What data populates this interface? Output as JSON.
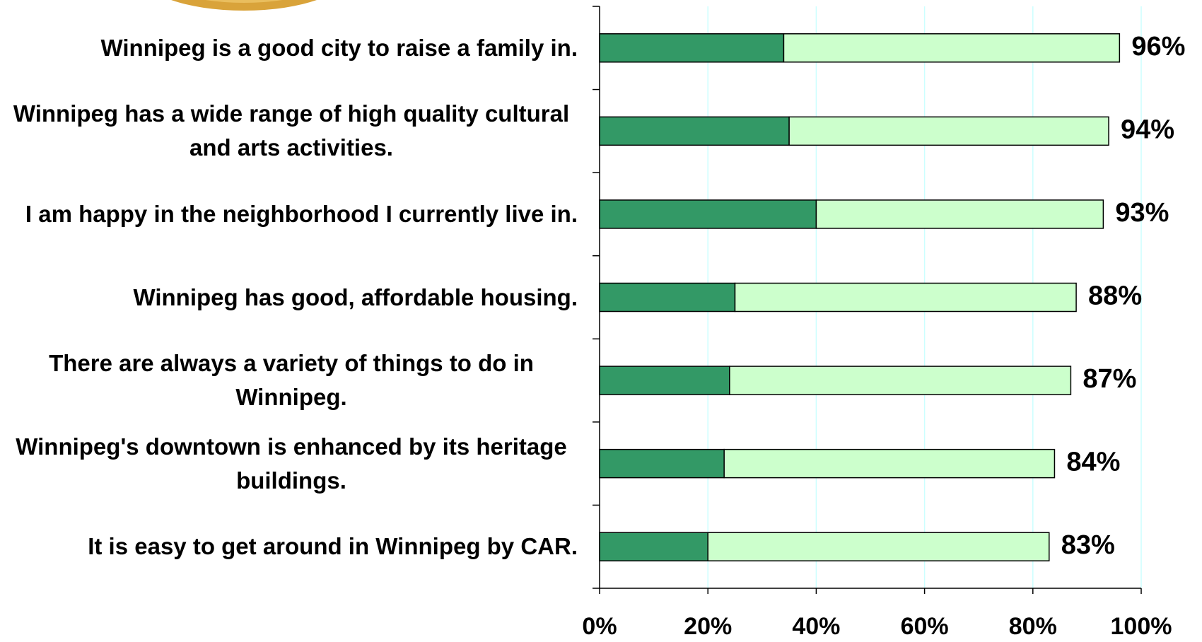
{
  "chart_data": {
    "type": "stacked-bar-horizontal",
    "categories": [
      "Winnipeg is a good city to raise a family in.",
      "Winnipeg has a wide range of high quality cultural and arts activities.",
      "I am happy in the neighborhood I currently live in.",
      "Winnipeg has good, affordable housing.",
      "There are always a variety of things to do in Winnipeg.",
      "Winnipeg's downtown is enhanced by its heritage buildings.",
      "It is easy to get around in Winnipeg by CAR."
    ],
    "series": [
      {
        "color": "#339966",
        "values": [
          34,
          35,
          40,
          25,
          24,
          23,
          20
        ]
      },
      {
        "color": "#ccffcc",
        "values": [
          62,
          59,
          53,
          63,
          63,
          61,
          63
        ]
      }
    ],
    "totals": {
      "values": [
        96,
        94,
        93,
        88,
        87,
        84,
        83
      ],
      "value_labels": [
        "96%",
        "94%",
        "93%",
        "88%",
        "87%",
        "84%",
        "83%"
      ]
    },
    "xlim": [
      0,
      100
    ],
    "xticks": [
      {
        "value": 0,
        "label": "0%"
      },
      {
        "value": 20,
        "label": "20%"
      },
      {
        "value": 40,
        "label": "40%"
      },
      {
        "value": 60,
        "label": "60%"
      },
      {
        "value": 80,
        "label": "80%"
      },
      {
        "value": 100,
        "label": "100%"
      }
    ],
    "grid": true,
    "grid_color": "#ccffff"
  }
}
